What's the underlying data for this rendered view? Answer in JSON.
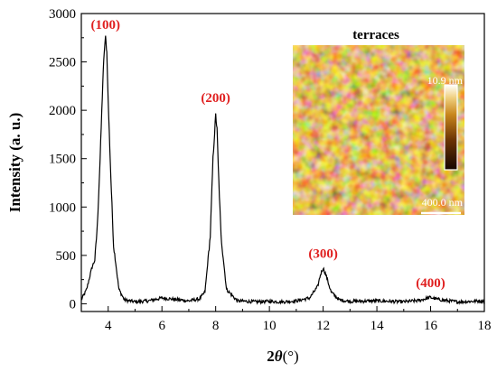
{
  "chart_data": {
    "type": "line",
    "xlabel_prefix": "2",
    "xlabel_symbol": "θ",
    "xlabel_unit": "(°)",
    "ylabel": "Intensity (a. u.)",
    "xlim": [
      3,
      18
    ],
    "ylim": [
      -80,
      3000
    ],
    "xticks": [
      4,
      6,
      8,
      10,
      12,
      14,
      16,
      18
    ],
    "yticks": [
      0,
      500,
      1000,
      1500,
      2000,
      2500,
      3000
    ],
    "grid": false,
    "line_color": "#000000",
    "label_color": "#e02020",
    "series": [
      {
        "x": [
          3.0,
          3.2,
          3.4,
          3.5,
          3.6,
          3.7,
          3.8,
          3.85,
          3.9,
          3.95,
          4.0,
          4.1,
          4.2,
          4.4,
          4.6,
          5.0,
          5.5,
          6.0,
          6.5,
          7.0,
          7.4,
          7.6,
          7.8,
          7.9,
          8.0,
          8.05,
          8.1,
          8.2,
          8.4,
          8.8,
          9.5,
          10.0,
          10.5,
          11.0,
          11.5,
          11.8,
          11.9,
          12.0,
          12.1,
          12.3,
          12.6,
          13.0,
          14.0,
          15.0,
          15.6,
          15.9,
          16.0,
          16.2,
          16.5,
          17.0,
          18.0
        ],
        "y": [
          40,
          150,
          380,
          450,
          820,
          1500,
          2300,
          2600,
          2750,
          2600,
          2100,
          1300,
          600,
          150,
          40,
          20,
          30,
          60,
          45,
          30,
          50,
          120,
          700,
          1500,
          1950,
          1800,
          1400,
          700,
          150,
          30,
          20,
          25,
          20,
          30,
          60,
          180,
          300,
          370,
          300,
          120,
          40,
          25,
          30,
          20,
          35,
          60,
          65,
          50,
          35,
          20,
          30
        ]
      }
    ],
    "peak_labels": [
      {
        "x": 3.9,
        "y": 2750,
        "text": "(100)"
      },
      {
        "x": 8.0,
        "y": 1990,
        "text": "(200)"
      },
      {
        "x": 12.0,
        "y": 380,
        "text": "(300)"
      },
      {
        "x": 16.0,
        "y": 80,
        "text": "(400)"
      }
    ]
  },
  "inset": {
    "title": "terraces",
    "height_scale_label": "10.9 nm",
    "scale_bar_label": "400.0 nm"
  }
}
